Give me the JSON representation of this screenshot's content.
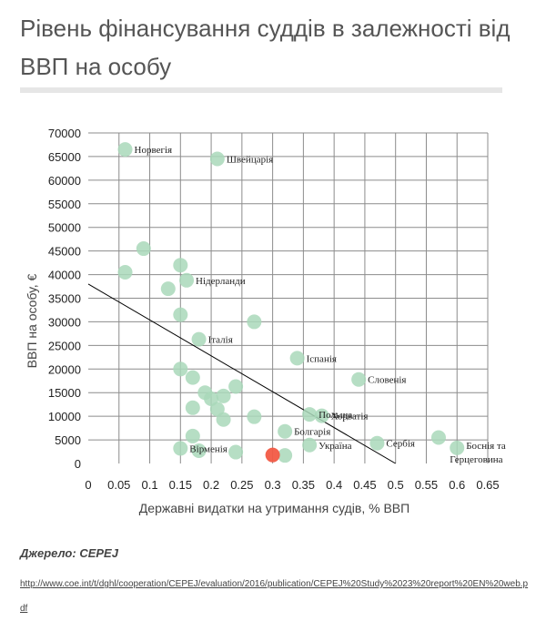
{
  "title": "Рівень фінансування суддів в залежності від ВВП на особу",
  "source": {
    "label": "Джерело: CEPEJ",
    "url": "http://www.coe.int/t/dghl/cooperation/CEPEJ/evaluation/2016/publication/CEPEJ%20Study%2023%20report%20EN%20web.pdf"
  },
  "colors": {
    "point": "#a9d8ba",
    "highlight": "#f25a45",
    "grid": "#8c8c8c",
    "trend": "#000000"
  },
  "chart_data": {
    "type": "scatter",
    "title": "Рівень фінансування суддів в залежності від ВВП на особу",
    "xlabel": "Державні видатки на утримання судів, % ВВП",
    "ylabel": "ВВП на особу, €",
    "xlim": [
      0,
      0.65
    ],
    "ylim": [
      0,
      70000
    ],
    "xticks": [
      "0",
      "0.05",
      "0.1",
      "0.15",
      "0.2",
      "0.25",
      "0.3",
      "0.35",
      "0.4",
      "0.45",
      "0.5",
      "0.55",
      "0.6",
      "0.65"
    ],
    "yticks": [
      "0",
      "5000",
      "10000",
      "15000",
      "20000",
      "25000",
      "30000",
      "35000",
      "40000",
      "45000",
      "50000",
      "55000",
      "60000",
      "65000",
      "70000"
    ],
    "grid": true,
    "trendline": {
      "from": [
        0,
        38000
      ],
      "to": [
        0.5,
        0
      ]
    },
    "points": [
      {
        "x": 0.06,
        "y": 66500,
        "label": "Норвегія"
      },
      {
        "x": 0.21,
        "y": 64500,
        "label": "Швейцарія"
      },
      {
        "x": 0.09,
        "y": 45500,
        "label": ""
      },
      {
        "x": 0.06,
        "y": 40500,
        "label": ""
      },
      {
        "x": 0.15,
        "y": 42000,
        "label": ""
      },
      {
        "x": 0.16,
        "y": 38800,
        "label": "Нідерланди"
      },
      {
        "x": 0.13,
        "y": 37000,
        "label": ""
      },
      {
        "x": 0.15,
        "y": 31500,
        "label": ""
      },
      {
        "x": 0.27,
        "y": 30000,
        "label": ""
      },
      {
        "x": 0.18,
        "y": 26300,
        "label": "Італія"
      },
      {
        "x": 0.34,
        "y": 22300,
        "label": "Іспанія"
      },
      {
        "x": 0.15,
        "y": 20000,
        "label": ""
      },
      {
        "x": 0.17,
        "y": 18200,
        "label": ""
      },
      {
        "x": 0.44,
        "y": 17800,
        "label": "Словенія"
      },
      {
        "x": 0.24,
        "y": 16300,
        "label": ""
      },
      {
        "x": 0.19,
        "y": 15000,
        "label": ""
      },
      {
        "x": 0.22,
        "y": 14300,
        "label": ""
      },
      {
        "x": 0.2,
        "y": 13700,
        "label": ""
      },
      {
        "x": 0.17,
        "y": 11800,
        "label": ""
      },
      {
        "x": 0.21,
        "y": 11500,
        "label": ""
      },
      {
        "x": 0.36,
        "y": 10400,
        "label": "Польща"
      },
      {
        "x": 0.38,
        "y": 10100,
        "label": "Хорватія"
      },
      {
        "x": 0.27,
        "y": 9900,
        "label": ""
      },
      {
        "x": 0.22,
        "y": 9300,
        "label": ""
      },
      {
        "x": 0.32,
        "y": 6800,
        "label": "Болгарія"
      },
      {
        "x": 0.17,
        "y": 5800,
        "label": ""
      },
      {
        "x": 0.57,
        "y": 5500,
        "label": ""
      },
      {
        "x": 0.47,
        "y": 4300,
        "label": "Сербія"
      },
      {
        "x": 0.36,
        "y": 3900,
        "label": "Україна"
      },
      {
        "x": 0.6,
        "y": 3300,
        "label": "Боснія та Герцеговина"
      },
      {
        "x": 0.15,
        "y": 3200,
        "label": "Вірменія"
      },
      {
        "x": 0.18,
        "y": 2700,
        "label": ""
      },
      {
        "x": 0.24,
        "y": 2400,
        "label": ""
      },
      {
        "x": 0.32,
        "y": 1700,
        "label": ""
      },
      {
        "x": 0.3,
        "y": 1800,
        "label": "",
        "highlight": true
      }
    ]
  }
}
